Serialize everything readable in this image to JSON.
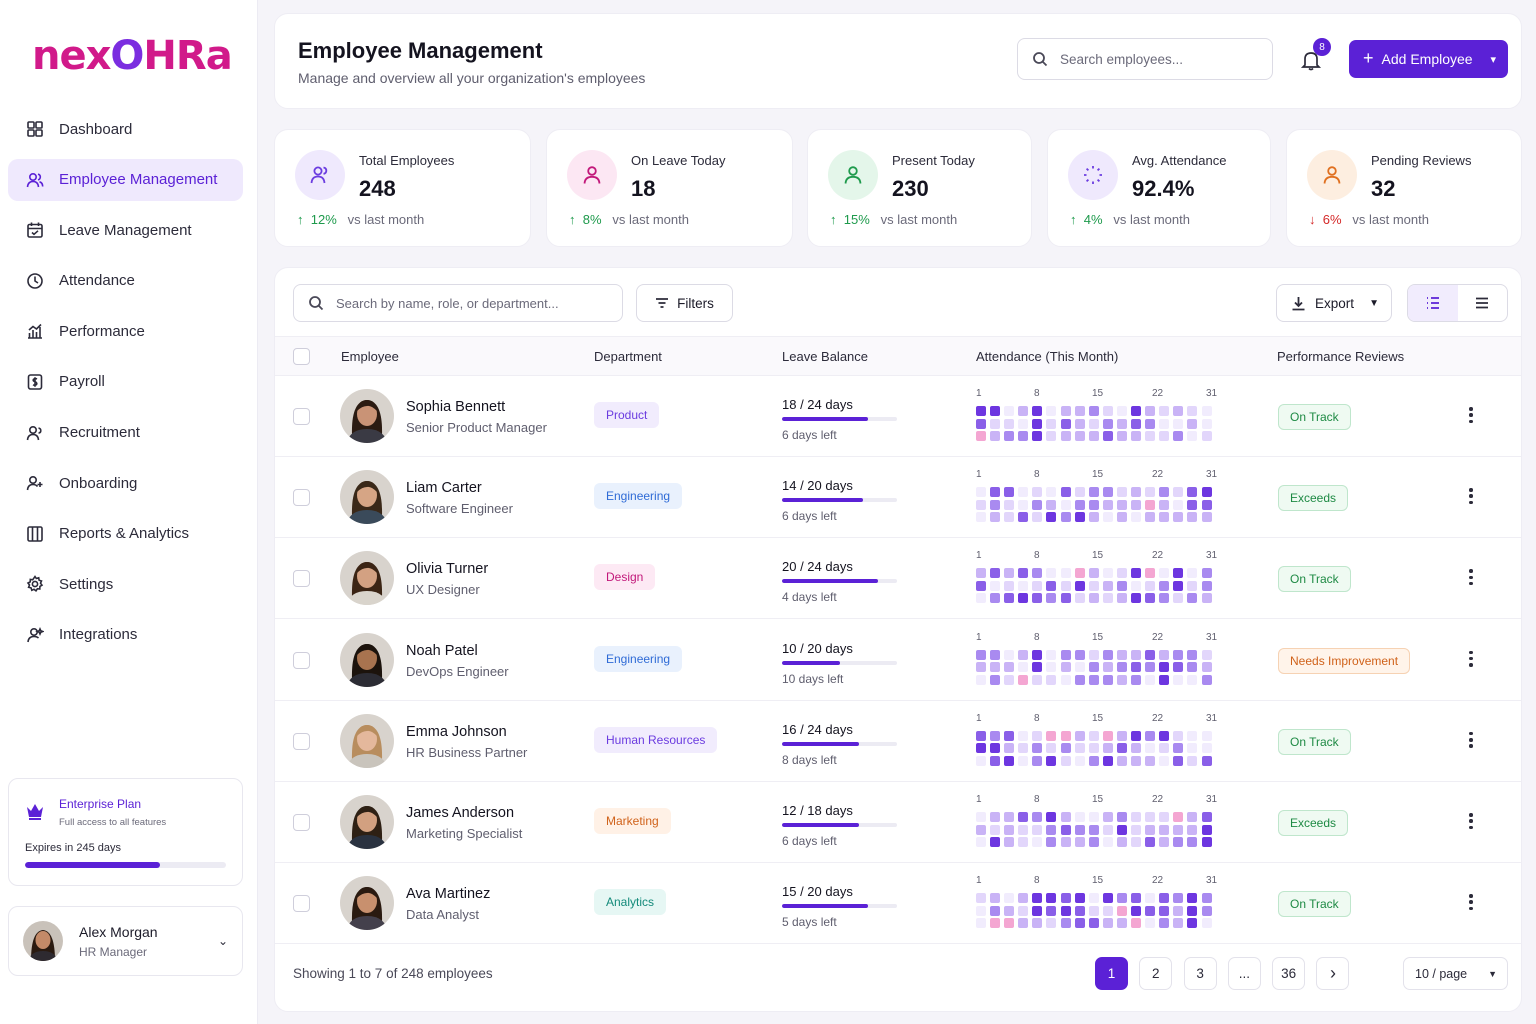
{
  "brand": {
    "logo_left": "nex",
    "logo_o": "O",
    "logo_right": "HRa"
  },
  "sidebar": {
    "items": [
      {
        "label": "Dashboard",
        "icon": "dashboard-icon",
        "active": false
      },
      {
        "label": "Employee Management",
        "icon": "users-icon",
        "active": true
      },
      {
        "label": "Leave Management",
        "icon": "calendar-icon",
        "active": false
      },
      {
        "label": "Attendance",
        "icon": "clock-icon",
        "active": false
      },
      {
        "label": "Performance",
        "icon": "chart-icon",
        "active": false
      },
      {
        "label": "Payroll",
        "icon": "dollar-icon",
        "active": false
      },
      {
        "label": "Recruitment",
        "icon": "people-icon",
        "active": false
      },
      {
        "label": "Onboarding",
        "icon": "user-plus-icon",
        "active": false
      },
      {
        "label": "Reports & Analytics",
        "icon": "report-icon",
        "active": false
      },
      {
        "label": "Settings",
        "icon": "gear-icon",
        "active": false
      },
      {
        "label": "Integrations",
        "icon": "integrations-icon",
        "active": false
      }
    ],
    "plan": {
      "title": "Enterprise Plan",
      "subtitle": "Full access to all features",
      "expires": "Expires in 245 days",
      "progress_pct": 67
    },
    "user": {
      "name": "Alex Morgan",
      "role": "HR Manager"
    }
  },
  "header": {
    "title": "Employee Management",
    "subtitle": "Manage and overview all your organization's employees",
    "search_placeholder": "Search employees...",
    "notifications": "8",
    "add_label": "Add Employee"
  },
  "stats": [
    {
      "label": "Total Employees",
      "value": "248",
      "trend": "12%",
      "dir": "up",
      "suffix": "vs last month",
      "color": "#6b3ce0",
      "bg": "#efe9fd"
    },
    {
      "label": "On Leave Today",
      "value": "18",
      "trend": "8%",
      "dir": "up",
      "suffix": "vs last month",
      "color": "#c2187a",
      "bg": "#fce7f3"
    },
    {
      "label": "Present Today",
      "value": "230",
      "trend": "15%",
      "dir": "up",
      "suffix": "vs last month",
      "color": "#1e9a4c",
      "bg": "#e4f6ea"
    },
    {
      "label": "Avg. Attendance",
      "value": "92.4%",
      "trend": "4%",
      "dir": "up",
      "suffix": "vs last month",
      "color": "#6b3ce0",
      "bg": "#efe9fd"
    },
    {
      "label": "Pending Reviews",
      "value": "32",
      "trend": "6%",
      "dir": "down",
      "suffix": "vs last month",
      "color": "#e07020",
      "bg": "#fdeee0"
    }
  ],
  "table": {
    "search_placeholder": "Search by name, role, or department...",
    "filters_label": "Filters",
    "export_label": "Export",
    "columns": {
      "employee": "Employee",
      "department": "Department",
      "leave": "Leave Balance",
      "attendance": "Attendance (This Month)",
      "performance": "Performance Reviews"
    },
    "day_ticks": [
      "1",
      "8",
      "15",
      "22",
      "31"
    ],
    "rows": [
      {
        "name": "Sophia Bennett",
        "role": "Senior Product Manager",
        "department": "Product",
        "dept_color": "#6b3ce0",
        "dept_bg": "#f1ecfd",
        "leave": "18 / 24 days",
        "leave_used": 18,
        "leave_total": 24,
        "left": "6 days left",
        "perf": "On Track",
        "perf_color": "#1e8a44",
        "perf_bg": "#effaf2",
        "perf_border": "#bfe6cc",
        "skin": "#c99376",
        "hair": "#2b1b12",
        "shirt": "#3a3a44"
      },
      {
        "name": "Liam Carter",
        "role": "Software Engineer",
        "department": "Engineering",
        "dept_color": "#2f6bd6",
        "dept_bg": "#e9f1fd",
        "leave": "14 / 20 days",
        "leave_used": 14,
        "leave_total": 20,
        "left": "6 days left",
        "perf": "Exceeds",
        "perf_color": "#1e8a44",
        "perf_bg": "#effaf2",
        "perf_border": "#bfe6cc",
        "skin": "#d6a585",
        "hair": "#3a2818",
        "shirt": "#3a4a5a"
      },
      {
        "name": "Olivia Turner",
        "role": "UX Designer",
        "department": "Design",
        "dept_color": "#c2187a",
        "dept_bg": "#fde9f4",
        "leave": "20 / 24 days",
        "leave_used": 20,
        "leave_total": 24,
        "left": "4 days left",
        "perf": "On Track",
        "perf_color": "#1e8a44",
        "perf_bg": "#effaf2",
        "perf_border": "#bfe6cc",
        "skin": "#d3a182",
        "hair": "#3b2414",
        "shirt": "#d9d4cc"
      },
      {
        "name": "Noah Patel",
        "role": "DevOps Engineer",
        "department": "Engineering",
        "dept_color": "#2f6bd6",
        "dept_bg": "#e9f1fd",
        "leave": "10 / 20 days",
        "leave_used": 10,
        "leave_total": 20,
        "left": "10 days left",
        "perf": "Needs Improvement",
        "perf_color": "#d0621a",
        "perf_bg": "#fff4ea",
        "perf_border": "#f6d2b3",
        "skin": "#a8734f",
        "hair": "#1c130c",
        "shirt": "#2c2c34"
      },
      {
        "name": "Emma Johnson",
        "role": "HR Business Partner",
        "department": "Human Resources",
        "dept_color": "#6b3ce0",
        "dept_bg": "#f1ecfd",
        "leave": "16 / 24 days",
        "leave_used": 16,
        "leave_total": 24,
        "left": "8 days left",
        "perf": "On Track",
        "perf_color": "#1e8a44",
        "perf_bg": "#effaf2",
        "perf_border": "#bfe6cc",
        "skin": "#e4b89c",
        "hair": "#b88d5e",
        "shirt": "#c9c4bc"
      },
      {
        "name": "James Anderson",
        "role": "Marketing Specialist",
        "department": "Marketing",
        "dept_color": "#d0621a",
        "dept_bg": "#fff1e6",
        "leave": "12 / 18 days",
        "leave_used": 12,
        "leave_total": 18,
        "left": "6 days left",
        "perf": "Exceeds",
        "perf_color": "#1e8a44",
        "perf_bg": "#effaf2",
        "perf_border": "#bfe6cc",
        "skin": "#d2a080",
        "hair": "#2e2014",
        "shirt": "#2a3240"
      },
      {
        "name": "Ava Martinez",
        "role": "Data Analyst",
        "department": "Analytics",
        "dept_color": "#138a7a",
        "dept_bg": "#e6f7f4",
        "leave": "15 / 20 days",
        "leave_used": 15,
        "leave_total": 20,
        "left": "5 days left",
        "perf": "On Track",
        "perf_color": "#1e8a44",
        "perf_bg": "#effaf2",
        "perf_border": "#bfe6cc",
        "skin": "#c8906e",
        "hair": "#2a1a10",
        "shirt": "#44404c"
      }
    ],
    "footer": "Showing 1 to 7 of 248 employees",
    "pages": [
      "1",
      "2",
      "3",
      "...",
      "36"
    ],
    "per_page": "10 / page"
  }
}
